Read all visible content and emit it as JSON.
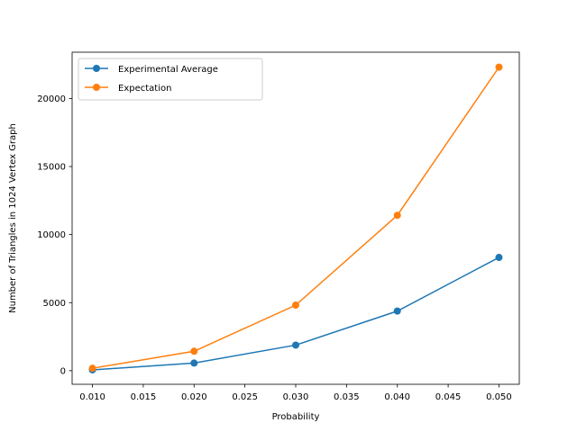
{
  "chart_data": {
    "type": "line",
    "title": "",
    "xlabel": "Probability",
    "ylabel": "Number of Triangles in 1024 Vertex Graph",
    "x": [
      0.01,
      0.02,
      0.03,
      0.04,
      0.05
    ],
    "xlim": [
      0.008,
      0.052
    ],
    "ylim": [
      -1000,
      23400
    ],
    "xticks": [
      0.01,
      0.015,
      0.02,
      0.025,
      0.03,
      0.035,
      0.04,
      0.045,
      0.05
    ],
    "xtick_labels": [
      "0.010",
      "0.015",
      "0.020",
      "0.025",
      "0.030",
      "0.035",
      "0.040",
      "0.045",
      "0.050"
    ],
    "yticks": [
      0,
      5000,
      10000,
      15000,
      20000
    ],
    "ytick_labels": [
      "0",
      "5000",
      "10000",
      "15000",
      "20000"
    ],
    "grid": false,
    "legend_position": "top-left",
    "series": [
      {
        "name": "Experimental Average",
        "color": "#1f77b4",
        "marker": "circle",
        "values": [
          60,
          560,
          1880,
          4380,
          8320
        ]
      },
      {
        "name": "Expectation",
        "color": "#ff7f0e",
        "marker": "circle",
        "values": [
          178,
          1427,
          4817,
          11418,
          22300
        ]
      }
    ]
  }
}
